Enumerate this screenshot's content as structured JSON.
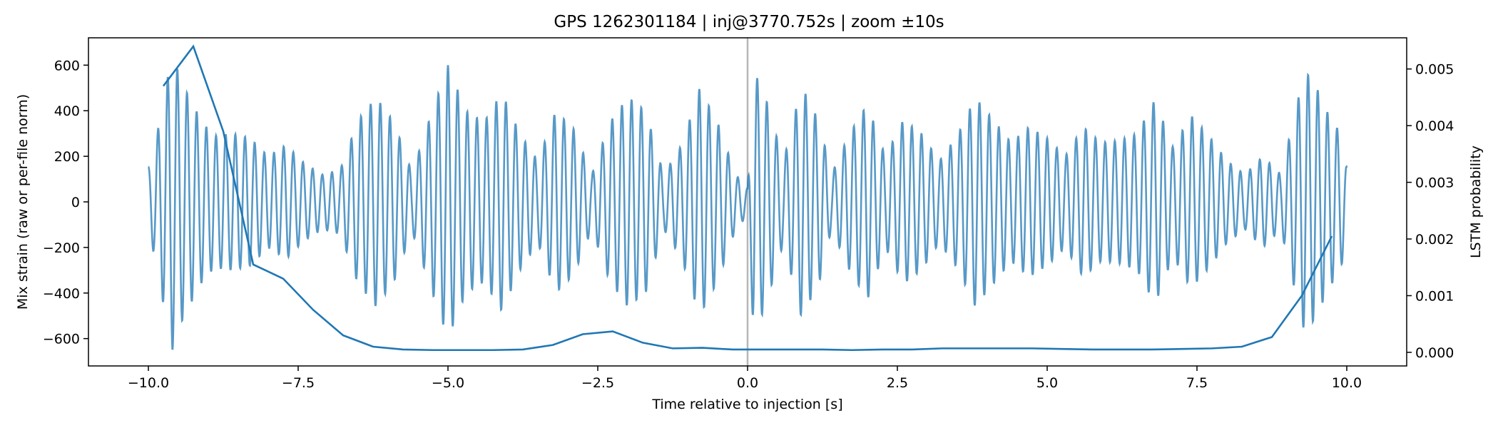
{
  "chart_data": {
    "type": "line",
    "title": "GPS 1262301184 | inj@3770.752s | zoom ±10s",
    "xlabel": "Time relative to injection [s]",
    "ylabel": "Mix strain (raw or per-file norm)",
    "y2label": "LSTM probability",
    "xlim": [
      -11.0,
      11.0
    ],
    "ylim": [
      -720,
      720
    ],
    "y2lim": [
      -0.00024,
      0.00555
    ],
    "xticks": [
      -10.0,
      -7.5,
      -5.0,
      -2.5,
      0.0,
      2.5,
      5.0,
      7.5,
      10.0
    ],
    "xtick_labels": [
      "−10.0",
      "−7.5",
      "−5.0",
      "−2.5",
      "0.0",
      "2.5",
      "5.0",
      "7.5",
      "10.0"
    ],
    "yticks": [
      600,
      400,
      200,
      0,
      -200,
      -400,
      -600
    ],
    "ytick_labels": [
      "600",
      "400",
      "200",
      "0",
      "−200",
      "−400",
      "−600"
    ],
    "y2ticks": [
      0.005,
      0.004,
      0.003,
      0.002,
      0.001,
      0.0
    ],
    "y2tick_labels": [
      "0.005",
      "0.004",
      "0.003",
      "0.002",
      "0.001",
      "0.000"
    ],
    "injection_marker_x": 0.0,
    "series": [
      {
        "name": "Mix strain",
        "axis": "left",
        "color": "#1f77b4",
        "opacity": 0.75,
        "envelope": {
          "x": [
            -10.0,
            -9.9,
            -9.75,
            -9.6,
            -9.45,
            -9.3,
            -9.1,
            -8.9,
            -8.6,
            -8.3,
            -8.0,
            -7.7,
            -7.4,
            -7.1,
            -6.8,
            -6.5,
            -6.2,
            -5.9,
            -5.6,
            -5.3,
            -5.0,
            -4.7,
            -4.4,
            -4.1,
            -3.8,
            -3.5,
            -3.2,
            -2.9,
            -2.6,
            -2.3,
            -2.0,
            -1.7,
            -1.4,
            -1.1,
            -0.8,
            -0.5,
            -0.2,
            0.0,
            0.1,
            0.3,
            0.6,
            0.9,
            1.2,
            1.4,
            1.7,
            2.0,
            2.3,
            2.6,
            2.9,
            3.2,
            3.5,
            3.8,
            4.1,
            4.4,
            4.7,
            5.0,
            5.3,
            5.6,
            5.9,
            6.2,
            6.5,
            6.8,
            7.1,
            7.4,
            7.7,
            8.0,
            8.3,
            8.6,
            8.9,
            9.1,
            9.3,
            9.5,
            9.7,
            9.9,
            10.0
          ],
          "amp": [
            150,
            230,
            450,
            650,
            530,
            450,
            350,
            290,
            300,
            280,
            200,
            250,
            170,
            120,
            140,
            360,
            460,
            350,
            130,
            370,
            600,
            400,
            350,
            480,
            300,
            180,
            400,
            320,
            120,
            350,
            460,
            400,
            120,
            250,
            500,
            350,
            120,
            60,
            580,
            460,
            180,
            510,
            350,
            120,
            300,
            430,
            200,
            360,
            300,
            180,
            290,
            460,
            360,
            260,
            330,
            280,
            200,
            330,
            260,
            270,
            300,
            450,
            240,
            380,
            290,
            180,
            120,
            200,
            120,
            350,
            580,
            500,
            380,
            300,
            150
          ]
        }
      },
      {
        "name": "LSTM probability",
        "axis": "right",
        "color": "#1f77b4",
        "opacity": 1.0,
        "x": [
          -9.75,
          -9.25,
          -8.75,
          -8.25,
          -7.75,
          -7.25,
          -6.75,
          -6.25,
          -5.75,
          -5.25,
          -4.75,
          -4.25,
          -3.75,
          -3.25,
          -2.75,
          -2.25,
          -1.75,
          -1.25,
          -0.75,
          -0.25,
          0.25,
          0.75,
          1.25,
          1.75,
          2.25,
          2.75,
          3.25,
          3.75,
          4.25,
          4.75,
          5.25,
          5.75,
          6.25,
          6.75,
          7.25,
          7.75,
          8.25,
          8.75,
          9.25,
          9.75
        ],
        "y": [
          0.0047,
          0.0054,
          0.0039,
          0.00155,
          0.0013,
          0.00075,
          0.0003,
          0.0001,
          5e-05,
          4e-05,
          4e-05,
          4e-05,
          5e-05,
          0.00013,
          0.00032,
          0.00037,
          0.00017,
          7e-05,
          8e-05,
          5e-05,
          5e-05,
          5e-05,
          5e-05,
          4e-05,
          5e-05,
          5e-05,
          7e-05,
          7e-05,
          7e-05,
          7e-05,
          6e-05,
          5e-05,
          5e-05,
          5e-05,
          6e-05,
          7e-05,
          0.0001,
          0.00027,
          0.001,
          0.00205
        ]
      }
    ]
  }
}
